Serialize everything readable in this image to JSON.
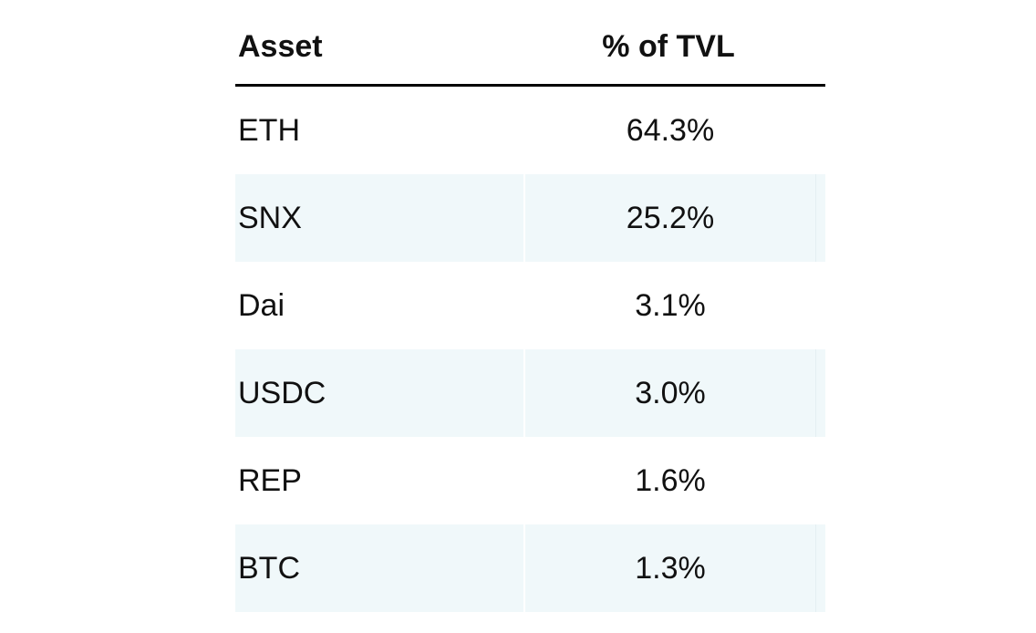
{
  "table": {
    "headers": {
      "asset": "Asset",
      "pct": "% of TVL"
    },
    "rows": [
      {
        "asset": "ETH",
        "pct": "64.3%"
      },
      {
        "asset": "SNX",
        "pct": "25.2%"
      },
      {
        "asset": "Dai",
        "pct": "3.1%"
      },
      {
        "asset": "USDC",
        "pct": "3.0%"
      },
      {
        "asset": "REP",
        "pct": "1.6%"
      },
      {
        "asset": "BTC",
        "pct": "1.3%"
      }
    ]
  },
  "colors": {
    "background": "#ffffff",
    "text": "#111111",
    "rule": "#000000",
    "row_shade": "#f0f8fa",
    "seam": "#e4eff2"
  },
  "chart_data": {
    "type": "table",
    "title": "Asset share of TVL",
    "columns": [
      "Asset",
      "% of TVL"
    ],
    "rows": [
      [
        "ETH",
        64.3
      ],
      [
        "SNX",
        25.2
      ],
      [
        "Dai",
        3.1
      ],
      [
        "USDC",
        3.0
      ],
      [
        "REP",
        1.6
      ],
      [
        "BTC",
        1.3
      ]
    ],
    "unit": "%"
  }
}
